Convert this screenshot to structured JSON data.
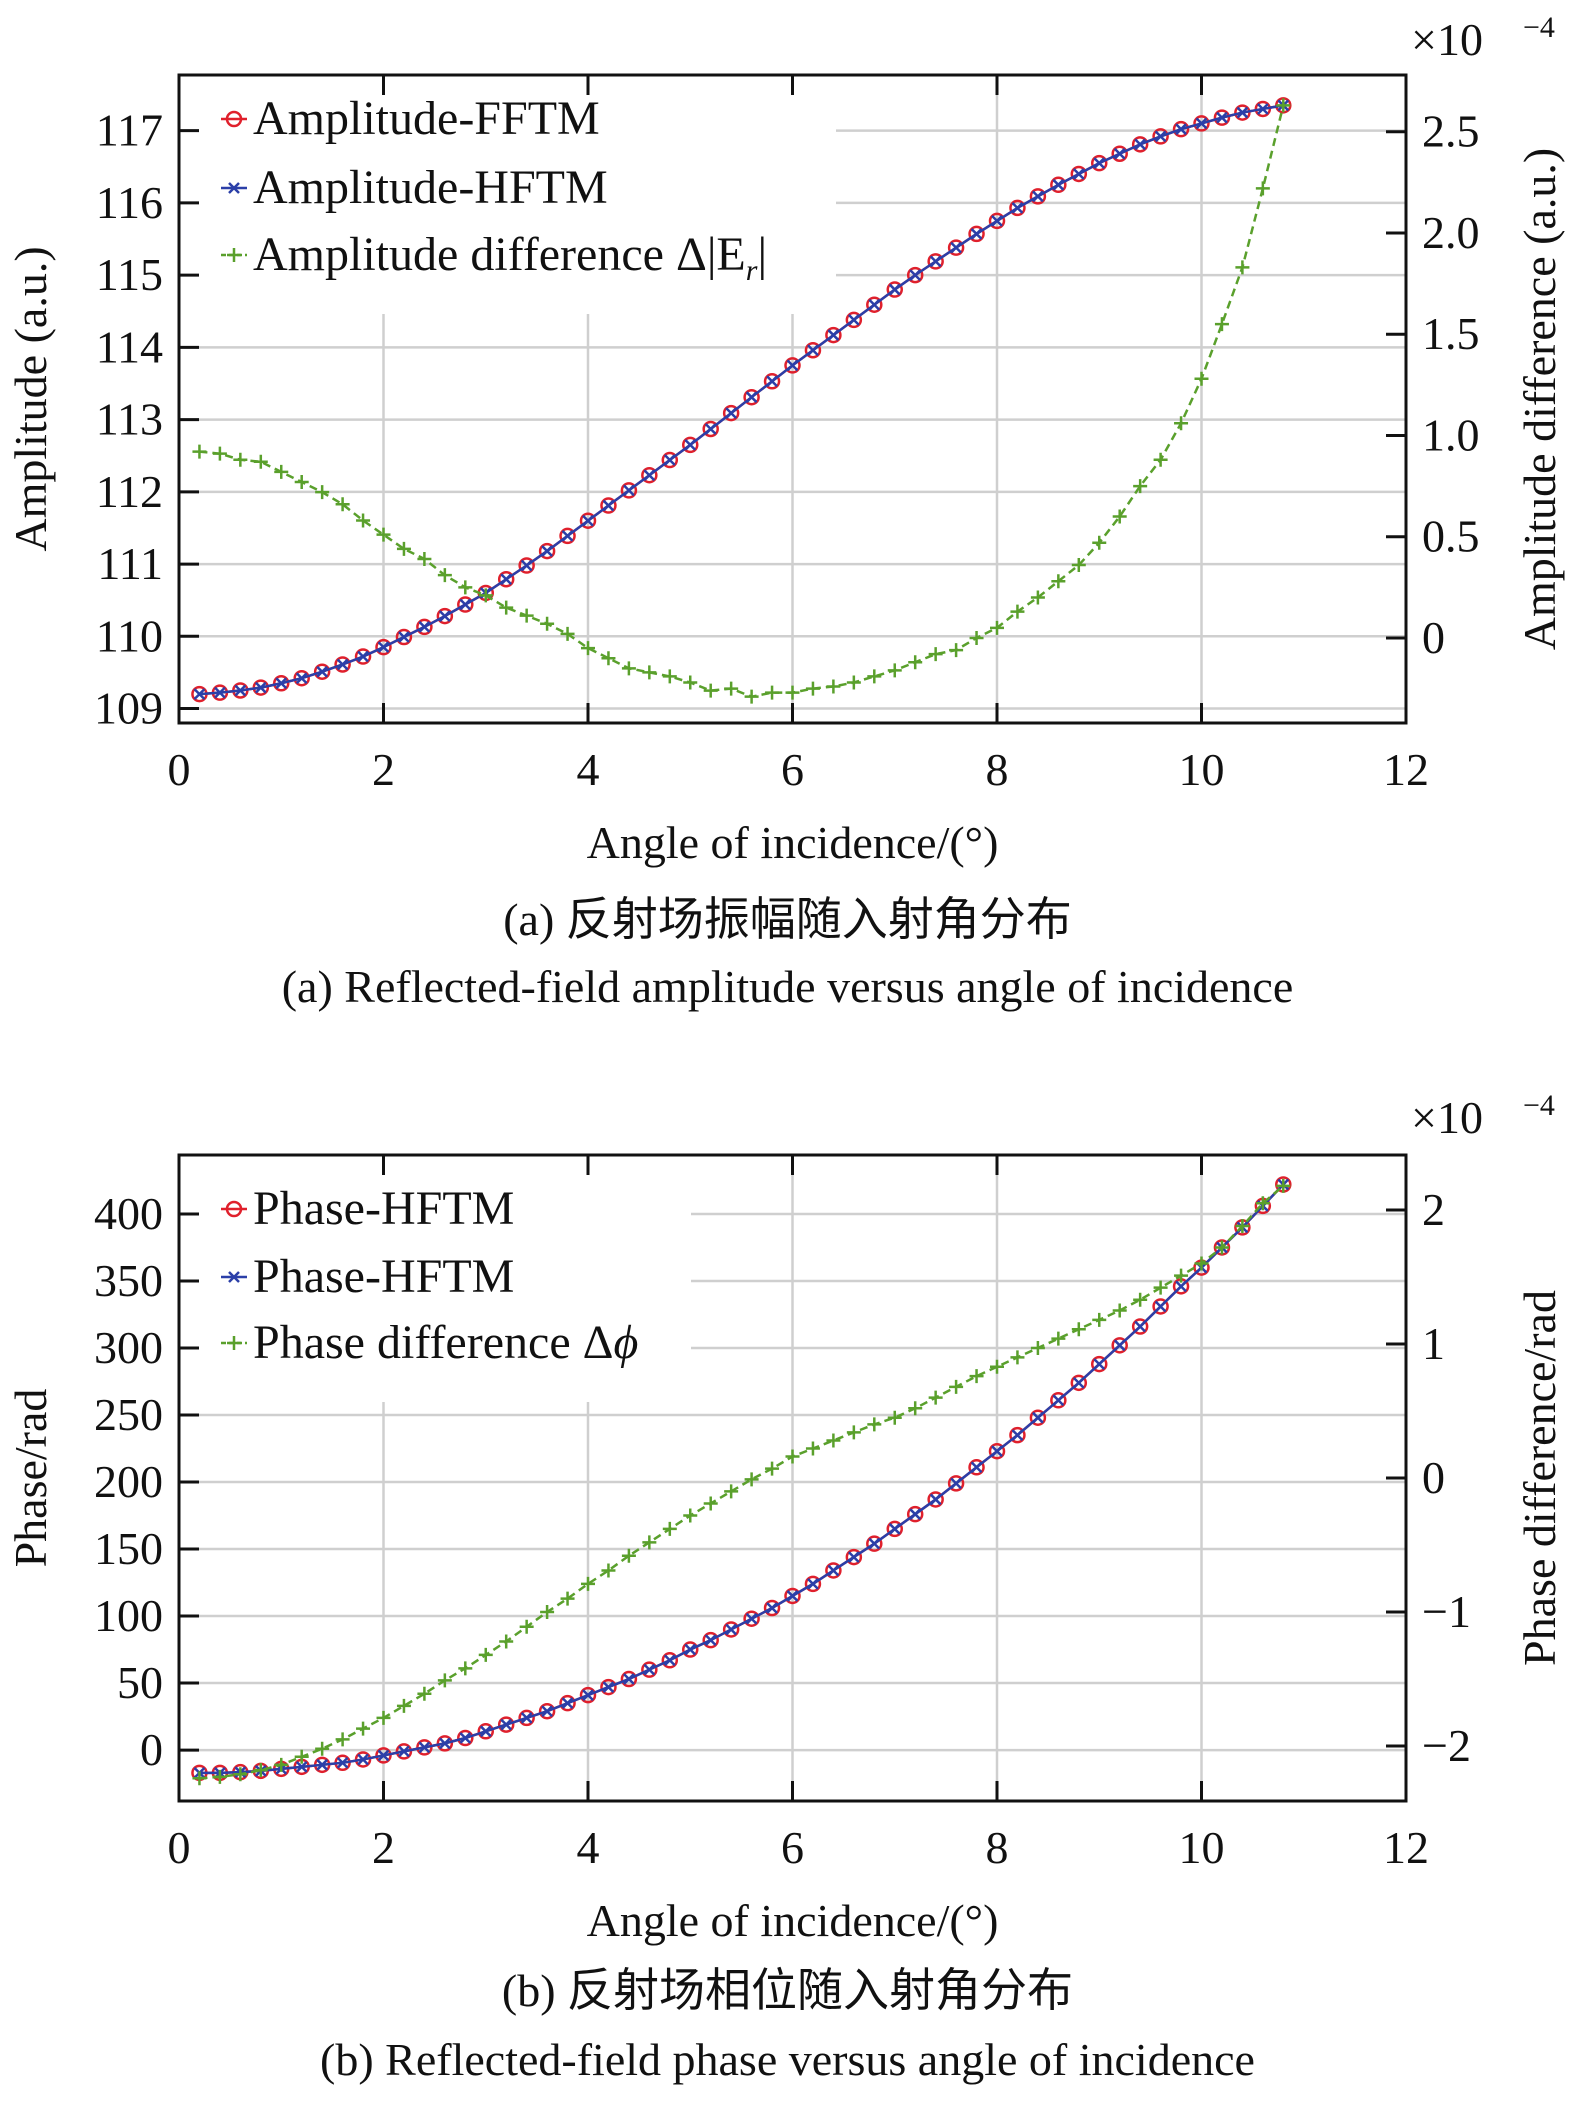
{
  "chart_data": [
    {
      "type": "line",
      "caption_zh": "(a) 反射场振幅随入射角分布",
      "caption_en": "(a) Reflected-field amplitude versus angle of incidence",
      "xlabel": "Angle of incidence/(°)",
      "ylabel_left": "Amplitude (a.u.)",
      "ylabel_right": "Amplitude difference (a.u.)",
      "right_exponent": "×10",
      "right_exponent_power": "−4",
      "xlim": [
        0,
        12
      ],
      "xticks": [
        "0",
        "2",
        "4",
        "6",
        "8",
        "10",
        "12"
      ],
      "ylim_left": [
        108.8,
        117.77
      ],
      "yticks_left": [
        "109",
        "110",
        "111",
        "112",
        "113",
        "114",
        "115",
        "116",
        "117"
      ],
      "ylim_right": [
        -0.42,
        2.78
      ],
      "yticks_right": [
        "0",
        "0.5",
        "1.0",
        "1.5",
        "2.0",
        "2.5"
      ],
      "grid": true,
      "legend_position": "top-left",
      "x": [
        0.2,
        0.4,
        0.6,
        0.8,
        1.0,
        1.2,
        1.4,
        1.6,
        1.8,
        2.0,
        2.2,
        2.4,
        2.6,
        2.8,
        3.0,
        3.2,
        3.4,
        3.6,
        3.8,
        4.0,
        4.2,
        4.4,
        4.6,
        4.8,
        5.0,
        5.2,
        5.4,
        5.6,
        5.8,
        6.0,
        6.2,
        6.4,
        6.6,
        6.8,
        7.0,
        7.2,
        7.4,
        7.6,
        7.8,
        8.0,
        8.2,
        8.4,
        8.6,
        8.8,
        9.0,
        9.2,
        9.4,
        9.6,
        9.8,
        10.0,
        10.2,
        10.4,
        10.6,
        10.8
      ],
      "series": [
        {
          "name": "Amplitude-FFTM",
          "axis": "left",
          "color": "#e0202c",
          "marker": "circle",
          "values": [
            109.2,
            109.22,
            109.25,
            109.29,
            109.35,
            109.42,
            109.51,
            109.61,
            109.72,
            109.85,
            109.99,
            110.13,
            110.28,
            110.44,
            110.6,
            110.79,
            110.98,
            111.18,
            111.39,
            111.6,
            111.81,
            112.02,
            112.23,
            112.44,
            112.65,
            112.87,
            113.09,
            113.31,
            113.53,
            113.75,
            113.96,
            114.17,
            114.38,
            114.59,
            114.8,
            115.0,
            115.19,
            115.38,
            115.57,
            115.75,
            115.93,
            116.09,
            116.25,
            116.4,
            116.55,
            116.68,
            116.81,
            116.92,
            117.02,
            117.1,
            117.18,
            117.25,
            117.3,
            117.35
          ]
        },
        {
          "name": "Amplitude-HFTM",
          "axis": "left",
          "color": "#2b3fa8",
          "marker": "x",
          "values": [
            109.2,
            109.22,
            109.25,
            109.29,
            109.35,
            109.42,
            109.51,
            109.61,
            109.72,
            109.85,
            109.99,
            110.13,
            110.28,
            110.44,
            110.6,
            110.79,
            110.98,
            111.18,
            111.39,
            111.6,
            111.81,
            112.02,
            112.23,
            112.44,
            112.65,
            112.87,
            113.09,
            113.31,
            113.53,
            113.75,
            113.96,
            114.17,
            114.38,
            114.59,
            114.8,
            115.0,
            115.19,
            115.38,
            115.57,
            115.75,
            115.93,
            116.09,
            116.25,
            116.4,
            116.55,
            116.68,
            116.81,
            116.92,
            117.02,
            117.1,
            117.18,
            117.25,
            117.3,
            117.35
          ]
        },
        {
          "name": "Amplitude difference Δ|E",
          "name_sub": "r",
          "name_tail": "|",
          "axis": "right",
          "color": "#5aa02c",
          "marker": "plus",
          "dashed": true,
          "unit_scale": "1e-4",
          "values": [
            0.92,
            0.91,
            0.88,
            0.87,
            0.82,
            0.77,
            0.72,
            0.66,
            0.58,
            0.51,
            0.44,
            0.39,
            0.31,
            0.25,
            0.21,
            0.15,
            0.11,
            0.07,
            0.02,
            -0.05,
            -0.1,
            -0.15,
            -0.17,
            -0.19,
            -0.22,
            -0.26,
            -0.25,
            -0.29,
            -0.27,
            -0.27,
            -0.25,
            -0.24,
            -0.22,
            -0.19,
            -0.16,
            -0.12,
            -0.08,
            -0.06,
            0.0,
            0.05,
            0.13,
            0.2,
            0.28,
            0.36,
            0.47,
            0.6,
            0.75,
            0.88,
            1.06,
            1.28,
            1.55,
            1.83,
            2.22,
            2.63
          ]
        }
      ]
    },
    {
      "type": "line",
      "caption_zh": "(b) 反射场相位随入射角分布",
      "caption_en": "(b) Reflected-field phase versus angle of incidence",
      "xlabel": "Angle of incidence/(°)",
      "ylabel_left": "Phase/rad",
      "ylabel_right": "Phase difference/rad",
      "right_exponent": "×10",
      "right_exponent_power": "−4",
      "xlim": [
        0,
        12
      ],
      "xticks": [
        "0",
        "2",
        "4",
        "6",
        "8",
        "10",
        "12"
      ],
      "ylim_left": [
        -38,
        444
      ],
      "yticks_left": [
        "0",
        "50",
        "100",
        "150",
        "200",
        "250",
        "300",
        "350",
        "400"
      ],
      "ylim_right": [
        -2.41,
        2.41
      ],
      "yticks_right": [
        "−2",
        "−1",
        "0",
        "1",
        "2"
      ],
      "grid": true,
      "legend_position": "top-left",
      "x": [
        0.2,
        0.4,
        0.6,
        0.8,
        1.0,
        1.2,
        1.4,
        1.6,
        1.8,
        2.0,
        2.2,
        2.4,
        2.6,
        2.8,
        3.0,
        3.2,
        3.4,
        3.6,
        3.8,
        4.0,
        4.2,
        4.4,
        4.6,
        4.8,
        5.0,
        5.2,
        5.4,
        5.6,
        5.8,
        6.0,
        6.2,
        6.4,
        6.6,
        6.8,
        7.0,
        7.2,
        7.4,
        7.6,
        7.8,
        8.0,
        8.2,
        8.4,
        8.6,
        8.8,
        9.0,
        9.2,
        9.4,
        9.6,
        9.8,
        10.0,
        10.2,
        10.4,
        10.6,
        10.8
      ],
      "series": [
        {
          "name": "Phase-HFTM",
          "axis": "left",
          "color": "#e0202c",
          "marker": "circle",
          "values": [
            -17,
            -17,
            -16.5,
            -15.5,
            -14,
            -12.5,
            -11,
            -9.5,
            -7,
            -4,
            -1,
            2,
            5,
            9,
            14,
            19,
            24,
            29,
            35,
            41,
            47,
            53,
            60,
            67,
            75,
            82,
            90,
            98,
            106,
            115,
            124,
            134,
            144,
            154,
            165,
            176,
            187,
            199,
            211,
            223,
            235,
            248,
            261,
            274,
            288,
            302,
            316,
            331,
            346,
            360,
            375,
            390,
            406,
            422
          ]
        },
        {
          "name": "Phase-HFTM",
          "axis": "left",
          "color": "#2b3fa8",
          "marker": "x",
          "values": [
            -17,
            -17,
            -16.5,
            -15.5,
            -14,
            -12.5,
            -11,
            -9.5,
            -7,
            -4,
            -1,
            2,
            5,
            9,
            14,
            19,
            24,
            29,
            35,
            41,
            47,
            53,
            60,
            67,
            75,
            82,
            90,
            98,
            106,
            115,
            124,
            134,
            144,
            154,
            165,
            176,
            187,
            199,
            211,
            223,
            235,
            248,
            261,
            274,
            288,
            302,
            316,
            331,
            346,
            360,
            375,
            390,
            406,
            422
          ]
        },
        {
          "name": "Phase difference Δ",
          "name_sub": "",
          "name_tail": "ϕ",
          "axis": "right",
          "color": "#5aa02c",
          "marker": "plus",
          "dashed": true,
          "unit_scale": "1e-4",
          "values": [
            -2.24,
            -2.23,
            -2.21,
            -2.18,
            -2.14,
            -2.08,
            -2.02,
            -1.95,
            -1.87,
            -1.79,
            -1.7,
            -1.61,
            -1.51,
            -1.42,
            -1.32,
            -1.22,
            -1.11,
            -1.0,
            -0.9,
            -0.79,
            -0.69,
            -0.58,
            -0.48,
            -0.38,
            -0.28,
            -0.19,
            -0.1,
            -0.01,
            0.07,
            0.16,
            0.22,
            0.28,
            0.34,
            0.4,
            0.45,
            0.52,
            0.6,
            0.68,
            0.76,
            0.83,
            0.9,
            0.97,
            1.04,
            1.11,
            1.18,
            1.25,
            1.33,
            1.42,
            1.51,
            1.6,
            1.72,
            1.88,
            2.05,
            2.18
          ]
        }
      ]
    }
  ]
}
